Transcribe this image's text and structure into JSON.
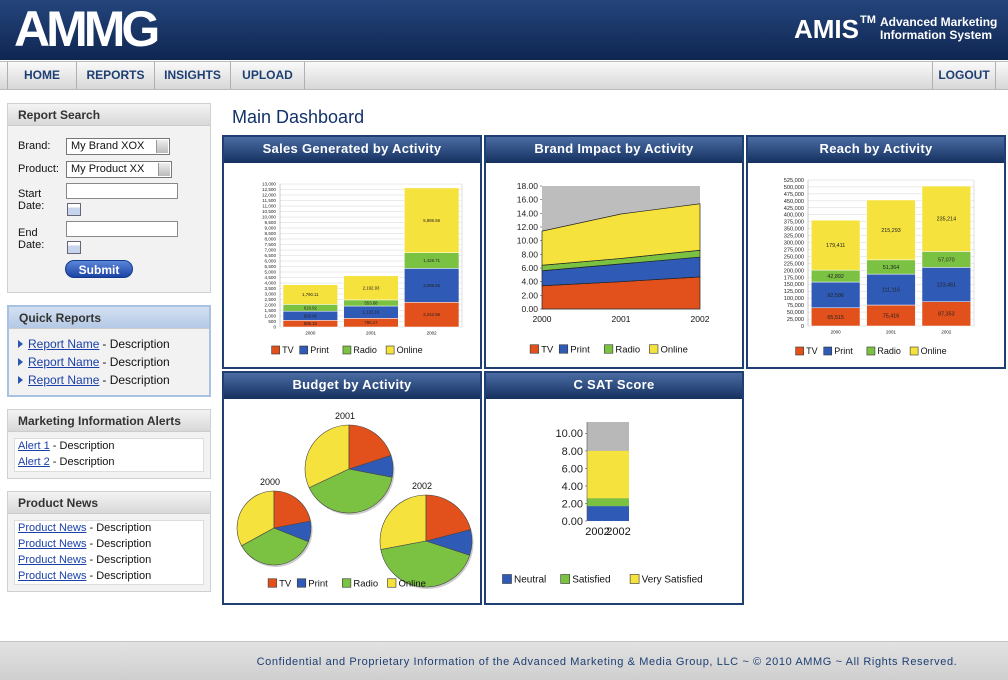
{
  "header": {
    "logo": "AMMG",
    "product": "AMIS",
    "trademark": "TM",
    "tagline": [
      "Advanced Marketing",
      "Information System"
    ]
  },
  "nav": {
    "items": [
      "HOME",
      "REPORTS",
      "INSIGHTS",
      "UPLOAD"
    ],
    "logout": "LOGOUT"
  },
  "report_search": {
    "title": "Report Search",
    "brand_label": "Brand:",
    "brand_value": "My Brand XOX",
    "product_label": "Product:",
    "product_value": "My Product XX",
    "start_label": "Start Date:",
    "end_label": "End Date:",
    "submit": "Submit"
  },
  "quick_reports": {
    "title": "Quick Reports",
    "items": [
      {
        "link": "Report Name",
        "text": "- Description"
      },
      {
        "link": "Report Name",
        "text": "- Description"
      },
      {
        "link": "Report Name",
        "text": "- Description"
      }
    ]
  },
  "alerts": {
    "title": "Marketing Information Alerts",
    "items": [
      {
        "link": "Alert 1",
        "text": "- Description"
      },
      {
        "link": "Alert 2",
        "text": "- Description"
      }
    ]
  },
  "news": {
    "title": "Product News",
    "items": [
      {
        "link": "Product News",
        "text": "- Description"
      },
      {
        "link": "Product News",
        "text": "- Description"
      },
      {
        "link": "Product News",
        "text": "- Description"
      },
      {
        "link": "Product News",
        "text": "- Description"
      }
    ]
  },
  "main_title": "Main Dashboard",
  "chart_data": [
    {
      "type": "bar",
      "stacked": true,
      "title": "Sales Generated by Activity",
      "categories": [
        "2000",
        "2001",
        "2002"
      ],
      "grid": true,
      "ylim": [
        0,
        13000
      ],
      "yticks": [
        0,
        500,
        {
          "value": 1000,
          "label": "1,000"
        },
        {
          "value": 1500,
          "label": "1,500"
        },
        {
          "value": 2000,
          "label": "2,000"
        },
        {
          "value": 2500,
          "label": "2,500"
        },
        {
          "value": 3000,
          "label": "3,000"
        },
        {
          "value": 3500,
          "label": "3,500"
        },
        {
          "value": 4000,
          "label": "4,000"
        },
        {
          "value": 4500,
          "label": "4,500"
        },
        {
          "value": 5000,
          "label": "5,000"
        },
        {
          "value": 5500,
          "label": "5,500"
        },
        {
          "value": 6000,
          "label": "6,000"
        },
        {
          "value": 6500,
          "label": "6,500"
        },
        {
          "value": 7000,
          "label": "7,000"
        },
        {
          "value": 7500,
          "label": "7,500"
        },
        {
          "value": 8000,
          "label": "8,000"
        },
        {
          "value": 8500,
          "label": "8,500"
        },
        {
          "value": 9000,
          "label": "9,000"
        },
        {
          "value": 9500,
          "label": "9,500"
        },
        {
          "value": 10000,
          "label": "10,000"
        },
        {
          "value": 10500,
          "label": "10,500"
        },
        {
          "value": 11000,
          "label": "11,000"
        },
        {
          "value": 11500,
          "label": "11,500"
        },
        {
          "value": 12000,
          "label": "12,000"
        },
        {
          "value": 12500,
          "label": "12,500"
        },
        {
          "value": 13000,
          "label": "13,000"
        }
      ],
      "series": [
        {
          "name": "TV",
          "color": "#e2501c",
          "values": [
            605.15,
            786.17,
            2242.96
          ],
          "value_labels": [
            "605.15",
            "786.17",
            "2,242.96"
          ]
        },
        {
          "name": "Print",
          "color": "#2f5bb7",
          "values": [
            829.96,
            1122.16,
            3086.56
          ],
          "value_labels": [
            "829.96",
            "1,122.16",
            "3,086.56"
          ]
        },
        {
          "name": "Radio",
          "color": "#7cc242",
          "values": [
            619.92,
            553.68,
            1426.71
          ],
          "value_labels": [
            "619.92",
            "553.68",
            "1,426.71"
          ]
        },
        {
          "name": "Online",
          "color": "#f6e23c",
          "values": [
            1790.11,
            2192.93,
            5886.56
          ],
          "value_labels": [
            "1,790.11",
            "2,192.93",
            "5,886.56"
          ]
        }
      ]
    },
    {
      "type": "area",
      "stacked": true,
      "title": "Brand Impact by Activity",
      "categories": [
        "2000",
        "2001",
        "2002"
      ],
      "grid": false,
      "ylim": [
        0,
        18
      ],
      "yticks": [
        {
          "value": 0,
          "label": "0.00"
        },
        {
          "value": 2,
          "label": "2.00"
        },
        {
          "value": 4,
          "label": "4.00"
        },
        {
          "value": 6,
          "label": "6.00"
        },
        {
          "value": 8,
          "label": "8.00"
        },
        {
          "value": 10,
          "label": "10.00"
        },
        {
          "value": 12,
          "label": "12.00"
        },
        {
          "value": 14,
          "label": "14.00"
        },
        {
          "value": 16,
          "label": "16.00"
        },
        {
          "value": 18,
          "label": "18.00"
        }
      ],
      "series": [
        {
          "name": "TV",
          "color": "#e2501c",
          "values": [
            3.4,
            4.0,
            4.7
          ]
        },
        {
          "name": "Print",
          "color": "#2f5bb7",
          "values": [
            2.2,
            2.6,
            2.9
          ]
        },
        {
          "name": "Radio",
          "color": "#7cc242",
          "values": [
            0.8,
            0.8,
            1.0
          ]
        },
        {
          "name": "Online",
          "color": "#f6e23c",
          "values": [
            5.0,
            6.5,
            6.8
          ]
        }
      ]
    },
    {
      "type": "bar",
      "stacked": true,
      "title": "Reach by Activity",
      "categories": [
        "2000",
        "2001",
        "2002"
      ],
      "grid": true,
      "ylim": [
        0,
        525000
      ],
      "yticks": [
        0,
        {
          "value": 25000,
          "label": "25,000"
        },
        {
          "value": 50000,
          "label": "50,000"
        },
        {
          "value": 75000,
          "label": "75,000"
        },
        {
          "value": 100000,
          "label": "100,000"
        },
        {
          "value": 125000,
          "label": "125,000"
        },
        {
          "value": 150000,
          "label": "150,000"
        },
        {
          "value": 175000,
          "label": "175,000"
        },
        {
          "value": 200000,
          "label": "200,000"
        },
        {
          "value": 225000,
          "label": "225,000"
        },
        {
          "value": 250000,
          "label": "250,000"
        },
        {
          "value": 275000,
          "label": "275,000"
        },
        {
          "value": 300000,
          "label": "300,000"
        },
        {
          "value": 325000,
          "label": "325,000"
        },
        {
          "value": 350000,
          "label": "350,000"
        },
        {
          "value": 375000,
          "label": "375,000"
        },
        {
          "value": 400000,
          "label": "400,000"
        },
        {
          "value": 425000,
          "label": "425,000"
        },
        {
          "value": 450000,
          "label": "450,000"
        },
        {
          "value": 475000,
          "label": "475,000"
        },
        {
          "value": 500000,
          "label": "500,000"
        },
        {
          "value": 525000,
          "label": "525,000"
        }
      ],
      "series": [
        {
          "name": "TV",
          "color": "#e2501c",
          "values": [
            65515,
            75416,
            87353
          ],
          "value_labels": [
            "65,515",
            "75,416",
            "87,353"
          ]
        },
        {
          "name": "Print",
          "color": "#2f5bb7",
          "values": [
            92596,
            111116,
            123461
          ],
          "value_labels": [
            "92,596",
            "111,116",
            "123,461"
          ]
        },
        {
          "name": "Radio",
          "color": "#7cc242",
          "values": [
            42892,
            51364,
            57070
          ],
          "value_labels": [
            "42,892",
            "51,364",
            "57,070"
          ]
        },
        {
          "name": "Online",
          "color": "#f6e23c",
          "values": [
            179411,
            215293,
            235214
          ],
          "value_labels": [
            "179,411",
            "215,293",
            "235,214"
          ]
        }
      ]
    },
    {
      "type": "pie",
      "title": "Budget by Activity",
      "categories": [
        "TV",
        "Print",
        "Radio",
        "Online"
      ],
      "colors": [
        "#e2501c",
        "#2f5bb7",
        "#7cc242",
        "#f6e23c"
      ],
      "pies": [
        {
          "name": "2000",
          "values": [
            22,
            9,
            36,
            33
          ]
        },
        {
          "name": "2001",
          "values": [
            20,
            8,
            40,
            32
          ]
        },
        {
          "name": "2002",
          "values": [
            21,
            9,
            42,
            28
          ]
        }
      ]
    },
    {
      "type": "bar",
      "stacked": true,
      "title": "C SAT Score",
      "categories": [
        "2002",
        "2002"
      ],
      "grid": false,
      "ylim": [
        0,
        11.3
      ],
      "yticks": [
        {
          "value": 0,
          "label": "0.00"
        },
        {
          "value": 2,
          "label": "2.00"
        },
        {
          "value": 4,
          "label": "4.00"
        },
        {
          "value": 6,
          "label": "6.00"
        },
        {
          "value": 8,
          "label": "8.00"
        },
        {
          "value": 10,
          "label": "10.00"
        }
      ],
      "series": [
        {
          "name": "Neutral",
          "color": "#2f5bb7",
          "values": [
            1.7,
            1.7
          ]
        },
        {
          "name": "Satisfied",
          "color": "#7cc242",
          "values": [
            0.9,
            0.9
          ]
        },
        {
          "name": "Very Satisfied",
          "color": "#f6e23c",
          "values": [
            5.4,
            5.4
          ]
        }
      ]
    }
  ],
  "footer": "Confidential and Proprietary Information of the Advanced Marketing & Media Group, LLC ~ © 2010 AMMG ~ All Rights Reserved."
}
